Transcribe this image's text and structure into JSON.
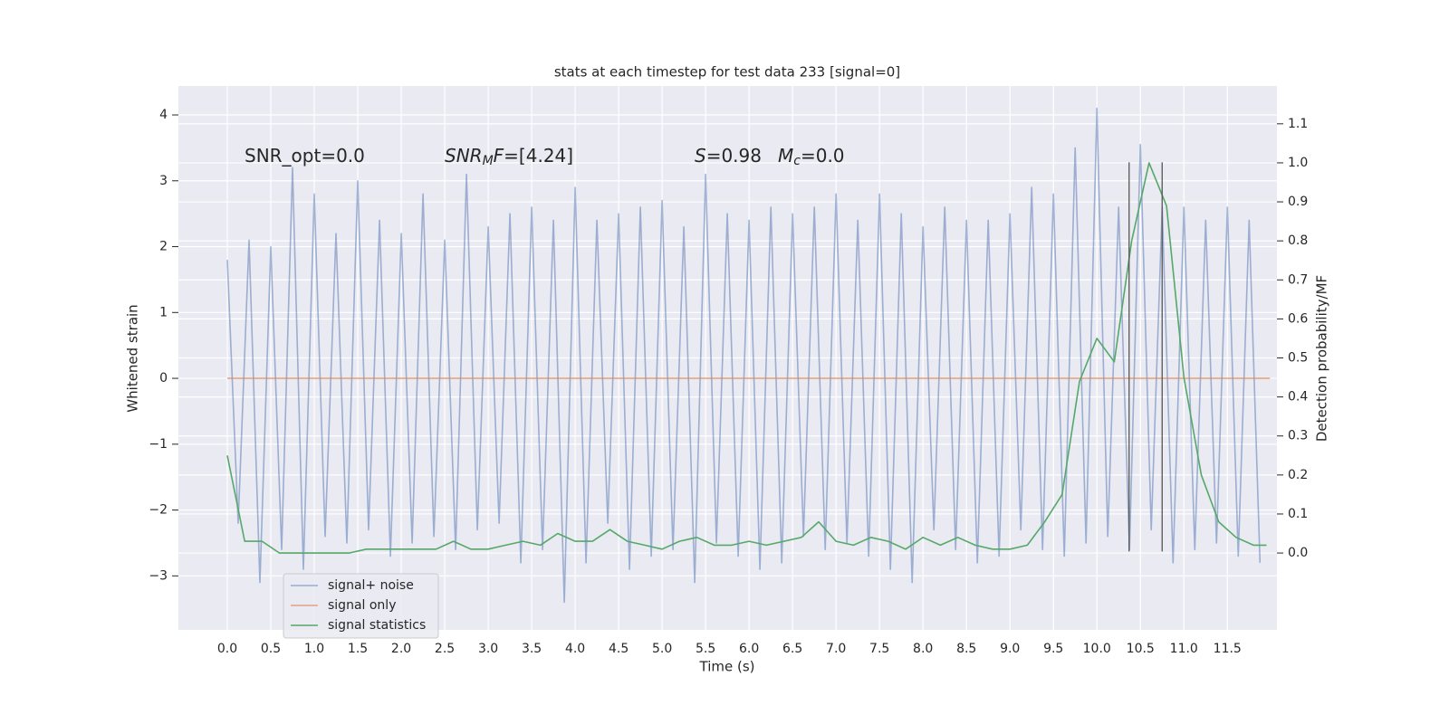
{
  "chart_data": {
    "type": "line",
    "title": "stats at each timestep for test data 233 [signal=0]",
    "xlabel": "Time (s)",
    "ylabel": "Whitened strain",
    "y2label": "Detection probability/MF",
    "xlim": [
      -0.5625,
      12.07
    ],
    "ylim": [
      -3.82,
      4.44
    ],
    "y2lim": [
      -0.197,
      1.197
    ],
    "xticks": [
      {
        "value": 0,
        "label": "0.0"
      },
      {
        "value": 0.5,
        "label": "0.5"
      },
      {
        "value": 1,
        "label": "1.0"
      },
      {
        "value": 1.5,
        "label": "1.5"
      },
      {
        "value": 2,
        "label": "2.0"
      },
      {
        "value": 2.5,
        "label": "2.5"
      },
      {
        "value": 3,
        "label": "3.0"
      },
      {
        "value": 3.5,
        "label": "3.5"
      },
      {
        "value": 4,
        "label": "4.0"
      },
      {
        "value": 4.5,
        "label": "4.5"
      },
      {
        "value": 5,
        "label": "5.0"
      },
      {
        "value": 5.5,
        "label": "5.5"
      },
      {
        "value": 6,
        "label": "6.0"
      },
      {
        "value": 6.5,
        "label": "6.5"
      },
      {
        "value": 7,
        "label": "7.0"
      },
      {
        "value": 7.5,
        "label": "7.5"
      },
      {
        "value": 8,
        "label": "8.0"
      },
      {
        "value": 8.5,
        "label": "8.5"
      },
      {
        "value": 9,
        "label": "9.0"
      },
      {
        "value": 9.5,
        "label": "9.5"
      },
      {
        "value": 10,
        "label": "10.0"
      },
      {
        "value": 10.5,
        "label": "10.5"
      },
      {
        "value": 11,
        "label": "11.0"
      },
      {
        "value": 11.5,
        "label": "11.5"
      }
    ],
    "yticks": [
      {
        "value": -3,
        "label": "−3"
      },
      {
        "value": -2,
        "label": "−2"
      },
      {
        "value": -1,
        "label": "−1"
      },
      0,
      1,
      2,
      3,
      4
    ],
    "y2ticks": [
      {
        "value": 0,
        "label": "0.0"
      },
      {
        "value": 0.1,
        "label": "0.1"
      },
      {
        "value": 0.2,
        "label": "0.2"
      },
      {
        "value": 0.3,
        "label": "0.3"
      },
      {
        "value": 0.4,
        "label": "0.4"
      },
      {
        "value": 0.5,
        "label": "0.5"
      },
      {
        "value": 0.6,
        "label": "0.6"
      },
      {
        "value": 0.7,
        "label": "0.7"
      },
      {
        "value": 0.8,
        "label": "0.8"
      },
      {
        "value": 0.9,
        "label": "0.9"
      },
      {
        "value": 1,
        "label": "1.0"
      },
      {
        "value": 1.1,
        "label": "1.1"
      }
    ],
    "grid": true,
    "legend": "lower left",
    "series": [
      {
        "name": "signal+ noise",
        "color": "#4c72b0",
        "opacity": 0.5,
        "x": [
          0,
          0.125,
          0.25,
          0.375,
          0.5,
          0.625,
          0.75,
          0.875,
          1,
          1.125,
          1.25,
          1.375,
          1.5,
          1.625,
          1.75,
          1.875,
          2,
          2.125,
          2.25,
          2.375,
          2.5,
          2.625,
          2.75,
          2.875,
          3,
          3.125,
          3.25,
          3.375,
          3.5,
          3.625,
          3.75,
          3.875,
          4,
          4.125,
          4.25,
          4.375,
          4.5,
          4.625,
          4.75,
          4.875,
          5,
          5.125,
          5.25,
          5.375,
          5.5,
          5.625,
          5.75,
          5.875,
          6,
          6.125,
          6.25,
          6.375,
          6.5,
          6.625,
          6.75,
          6.875,
          7,
          7.125,
          7.25,
          7.375,
          7.5,
          7.625,
          7.75,
          7.875,
          8,
          8.125,
          8.25,
          8.375,
          8.5,
          8.625,
          8.75,
          8.875,
          9,
          9.125,
          9.25,
          9.375,
          9.5,
          9.625,
          9.75,
          9.875,
          10,
          10.125,
          10.25,
          10.375,
          10.5,
          10.625,
          10.75,
          10.875,
          11,
          11.125,
          11.25,
          11.375,
          11.5,
          11.625,
          11.75,
          11.875
        ],
        "values": [
          1.8,
          -2.2,
          2.1,
          -3.1,
          2.0,
          -2.6,
          3.2,
          -2.9,
          2.8,
          -2.4,
          2.2,
          -2.5,
          3.0,
          -2.3,
          2.4,
          -2.7,
          2.2,
          -2.5,
          2.8,
          -2.4,
          2.1,
          -2.6,
          3.1,
          -2.3,
          2.3,
          -2.2,
          2.5,
          -2.8,
          2.6,
          -2.6,
          2.4,
          -3.4,
          2.9,
          -2.8,
          2.4,
          -2.2,
          2.5,
          -2.9,
          2.6,
          -2.7,
          2.7,
          -2.6,
          2.3,
          -3.1,
          3.1,
          -2.5,
          2.5,
          -2.7,
          2.4,
          -2.9,
          2.6,
          -2.8,
          2.5,
          -2.4,
          2.6,
          -2.6,
          2.8,
          -2.5,
          2.4,
          -2.7,
          2.8,
          -2.9,
          2.5,
          -3.1,
          2.3,
          -2.3,
          2.6,
          -2.6,
          2.4,
          -2.8,
          2.4,
          -2.7,
          2.5,
          -2.3,
          2.9,
          -2.6,
          2.8,
          -2.7,
          3.5,
          -2.5,
          4.1,
          -2.4,
          2.6,
          -2.6,
          3.55,
          -2.3,
          2.6,
          -2.8,
          2.6,
          -2.6,
          2.4,
          -2.5,
          2.6,
          -2.7,
          2.4,
          -2.8
        ]
      },
      {
        "name": "signal only",
        "color": "#dd8452",
        "opacity": 0.7,
        "x": [
          0,
          11.99
        ],
        "values": [
          0,
          0
        ]
      },
      {
        "name": "signal statistics",
        "color": "#55a868",
        "opacity": 1,
        "axis": "y2",
        "x": [
          0,
          0.2,
          0.4,
          0.6,
          0.8,
          1,
          1.2,
          1.4,
          1.6,
          1.8,
          2,
          2.2,
          2.4,
          2.6,
          2.8,
          3,
          3.2,
          3.4,
          3.6,
          3.8,
          4,
          4.2,
          4.4,
          4.6,
          4.8,
          5,
          5.2,
          5.4,
          5.6,
          5.8,
          6,
          6.2,
          6.4,
          6.6,
          6.8,
          7,
          7.2,
          7.4,
          7.6,
          7.8,
          8,
          8.2,
          8.4,
          8.6,
          8.8,
          9,
          9.2,
          9.4,
          9.6,
          9.8,
          10,
          10.2,
          10.4,
          10.6,
          10.8,
          11,
          11.2,
          11.4,
          11.6,
          11.8,
          11.95
        ],
        "values": [
          0.25,
          0.03,
          0.03,
          0,
          0,
          0,
          0,
          0,
          0.01,
          0.01,
          0.01,
          0.01,
          0.01,
          0.03,
          0.01,
          0.01,
          0.02,
          0.03,
          0.02,
          0.05,
          0.03,
          0.03,
          0.06,
          0.03,
          0.02,
          0.01,
          0.03,
          0.04,
          0.02,
          0.02,
          0.03,
          0.02,
          0.03,
          0.04,
          0.08,
          0.03,
          0.02,
          0.04,
          0.03,
          0.01,
          0.04,
          0.02,
          0.04,
          0.02,
          0.01,
          0.01,
          0.02,
          0.08,
          0.15,
          0.44,
          0.55,
          0.49,
          0.8,
          1.0,
          0.89,
          0.45,
          0.2,
          0.08,
          0.04,
          0.02,
          0.02
        ]
      }
    ],
    "vlines": {
      "x": [
        10.37,
        10.75
      ],
      "ymin": -2.63,
      "ymax": 3.28,
      "color": "#555555"
    },
    "annotations": [
      {
        "parts": [
          {
            "text": "SNR_opt=0.0",
            "style": "normal"
          }
        ]
      },
      {
        "parts": [
          {
            "text": "SNR",
            "style": "italic"
          },
          {
            "text": "M",
            "style": "sub"
          },
          {
            "text": "F",
            "style": "italic"
          },
          {
            "text": "=[4.24]",
            "style": "normal"
          }
        ]
      },
      {
        "parts": [
          {
            "text": "S",
            "style": "italic"
          },
          {
            "text": "=0.98",
            "style": "normal"
          }
        ]
      },
      {
        "parts": [
          {
            "text": "M",
            "style": "italic"
          },
          {
            "text": "c",
            "style": "sub"
          },
          {
            "text": "=0.0",
            "style": "normal"
          }
        ]
      }
    ]
  }
}
